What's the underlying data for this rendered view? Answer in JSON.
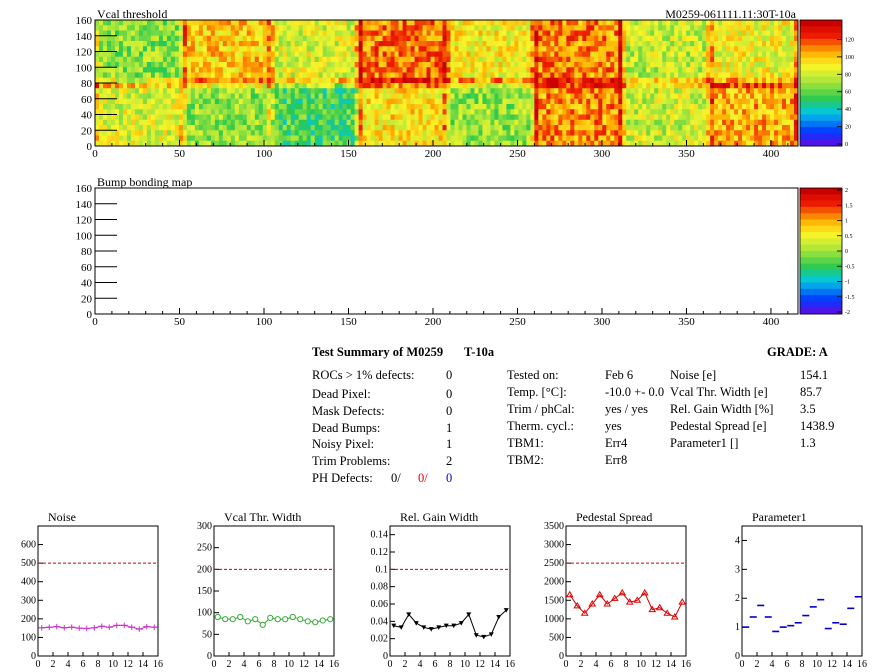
{
  "maps": [
    {
      "title": "Vcal threshold",
      "id_label": "M0259-061111.11:30T-10a",
      "x_ticks": [
        0,
        50,
        100,
        150,
        200,
        250,
        300,
        350,
        400
      ],
      "y_ticks": [
        0,
        20,
        40,
        60,
        80,
        100,
        120,
        140,
        160
      ],
      "palette_ticks": [
        "0",
        "20",
        "40",
        "60",
        "80",
        "100",
        "120"
      ],
      "roc_levels": [
        [
          70,
          100,
          85,
          115,
          92,
          112,
          80,
          90
        ],
        [
          85,
          72,
          60,
          95,
          72,
          110,
          82,
          105
        ]
      ]
    },
    {
      "title": "Bump bonding map",
      "x_ticks": [
        0,
        50,
        100,
        150,
        200,
        250,
        300,
        350,
        400
      ],
      "y_ticks": [
        0,
        20,
        40,
        60,
        80,
        100,
        120,
        140,
        160
      ],
      "palette_ticks": [
        "-2",
        "-1.5",
        "-1",
        "-0.5",
        "0",
        "0.5",
        "1",
        "1.5",
        "2"
      ]
    }
  ],
  "summary": {
    "title": "Test Summary of M0259",
    "temp_label": "T-10a",
    "grade": "GRADE:  A",
    "left": [
      {
        "label": "ROCs > 1% defects:",
        "value": "0"
      },
      {
        "label": "Dead Pixel:",
        "value": "0"
      },
      {
        "label": "Mask Defects:",
        "value": "0"
      },
      {
        "label": "Dead Bumps:",
        "value": "1"
      },
      {
        "label": "Noisy Pixel:",
        "value": "1"
      },
      {
        "label": "Trim Problems:",
        "value": "2"
      }
    ],
    "ph_label": "PH Defects:",
    "ph_values": [
      "0/",
      "0/",
      "0"
    ],
    "middle": [
      {
        "label": "Tested on:",
        "value": "Feb 6"
      },
      {
        "label": "Temp. [°C]:",
        "value": "-10.0 +- 0.0"
      },
      {
        "label": "Trim / phCal:",
        "value": "yes / yes"
      },
      {
        "label": "Therm. cycl.:",
        "value": "yes"
      },
      {
        "label": "TBM1:",
        "value": "Err4"
      },
      {
        "label": "TBM2:",
        "value": "Err8"
      }
    ],
    "right": [
      {
        "label": "Noise [e]",
        "value": "154.1"
      },
      {
        "label": "Vcal Thr. Width [e]",
        "value": "85.7"
      },
      {
        "label": "Rel. Gain Width [%]",
        "value": "3.5"
      },
      {
        "label": "Pedestal Spread [e]",
        "value": "1438.9"
      },
      {
        "label": "Parameter1 []",
        "value": "1.3"
      }
    ]
  },
  "colors": {
    "noise": "#cc33cc",
    "vcal": "#33aa33",
    "gain": "#000000",
    "pedestal": "#dd0000",
    "param": "#0000cc",
    "ref_line": "#cc0000"
  },
  "chart_data": [
    {
      "type": "scatter",
      "title": "Noise",
      "x": [
        0,
        1,
        2,
        3,
        4,
        5,
        6,
        7,
        8,
        9,
        10,
        11,
        12,
        13,
        14,
        15
      ],
      "values": [
        152,
        155,
        158,
        152,
        155,
        150,
        148,
        152,
        160,
        155,
        165,
        165,
        155,
        145,
        158,
        155
      ],
      "errors": [
        15,
        15,
        15,
        15,
        15,
        15,
        15,
        15,
        15,
        15,
        15,
        15,
        15,
        15,
        15,
        15
      ],
      "reference": 500,
      "xlim": [
        0,
        16
      ],
      "ylim": [
        0,
        700
      ],
      "x_ticks": [
        0,
        2,
        4,
        6,
        8,
        10,
        12,
        14,
        16
      ],
      "y_ticks": [
        0,
        100,
        200,
        300,
        400,
        500,
        600
      ],
      "marker": "cross"
    },
    {
      "type": "scatter",
      "title": "Vcal Thr. Width",
      "x": [
        0,
        1,
        2,
        3,
        4,
        5,
        6,
        7,
        8,
        9,
        10,
        11,
        12,
        13,
        14,
        15
      ],
      "values": [
        90,
        85,
        85,
        90,
        80,
        85,
        72,
        88,
        85,
        85,
        90,
        85,
        80,
        78,
        82,
        85
      ],
      "reference": 200,
      "xlim": [
        0,
        16
      ],
      "ylim": [
        0,
        300
      ],
      "x_ticks": [
        0,
        2,
        4,
        6,
        8,
        10,
        12,
        14,
        16
      ],
      "y_ticks": [
        0,
        50,
        100,
        150,
        200,
        250,
        300
      ],
      "marker": "circle"
    },
    {
      "type": "scatter",
      "title": "Rel. Gain Width",
      "x": [
        0,
        1,
        2,
        3,
        4,
        5,
        6,
        7,
        8,
        9,
        10,
        11,
        12,
        13,
        14,
        15
      ],
      "values": [
        0.035,
        0.033,
        0.048,
        0.038,
        0.033,
        0.031,
        0.033,
        0.035,
        0.035,
        0.038,
        0.048,
        0.024,
        0.022,
        0.025,
        0.045,
        0.053
      ],
      "reference": 0.1,
      "xlim": [
        0,
        16
      ],
      "ylim": [
        0,
        0.15
      ],
      "x_ticks": [
        0,
        2,
        4,
        6,
        8,
        10,
        12,
        14,
        16
      ],
      "y_ticks": [
        0,
        0.02,
        0.04,
        0.06,
        0.08,
        0.1,
        0.12,
        0.14
      ],
      "y_tick_labels": [
        "0",
        "0.02",
        "0.04",
        "0.06",
        "0.08",
        "0.1",
        "0.12",
        "0.14"
      ],
      "marker": "triangle-down"
    },
    {
      "type": "scatter",
      "title": "Pedestal Spread",
      "x": [
        0,
        1,
        2,
        3,
        4,
        5,
        6,
        7,
        8,
        9,
        10,
        11,
        12,
        13,
        14,
        15
      ],
      "values": [
        1650,
        1350,
        1150,
        1400,
        1650,
        1400,
        1550,
        1700,
        1450,
        1500,
        1700,
        1250,
        1300,
        1150,
        1050,
        1450
      ],
      "reference": 2500,
      "xlim": [
        0,
        16
      ],
      "ylim": [
        0,
        3500
      ],
      "x_ticks": [
        0,
        2,
        4,
        6,
        8,
        10,
        12,
        14,
        16
      ],
      "y_ticks": [
        0,
        500,
        1000,
        1500,
        2000,
        2500,
        3000,
        3500
      ],
      "marker": "triangle-up"
    },
    {
      "type": "scatter",
      "title": "Parameter1",
      "x": [
        0,
        1,
        2,
        3,
        4,
        5,
        6,
        7,
        8,
        9,
        10,
        11,
        12,
        13,
        14,
        15
      ],
      "values": [
        1.0,
        1.35,
        1.75,
        1.35,
        0.85,
        1.0,
        1.05,
        1.15,
        1.4,
        1.7,
        1.95,
        0.95,
        1.15,
        1.1,
        1.65,
        2.05
      ],
      "xlim": [
        0,
        16
      ],
      "ylim": [
        0,
        4.5
      ],
      "x_ticks": [
        0,
        2,
        4,
        6,
        8,
        10,
        12,
        14,
        16
      ],
      "y_ticks": [
        0,
        1,
        2,
        3,
        4
      ],
      "marker": "dash"
    }
  ]
}
